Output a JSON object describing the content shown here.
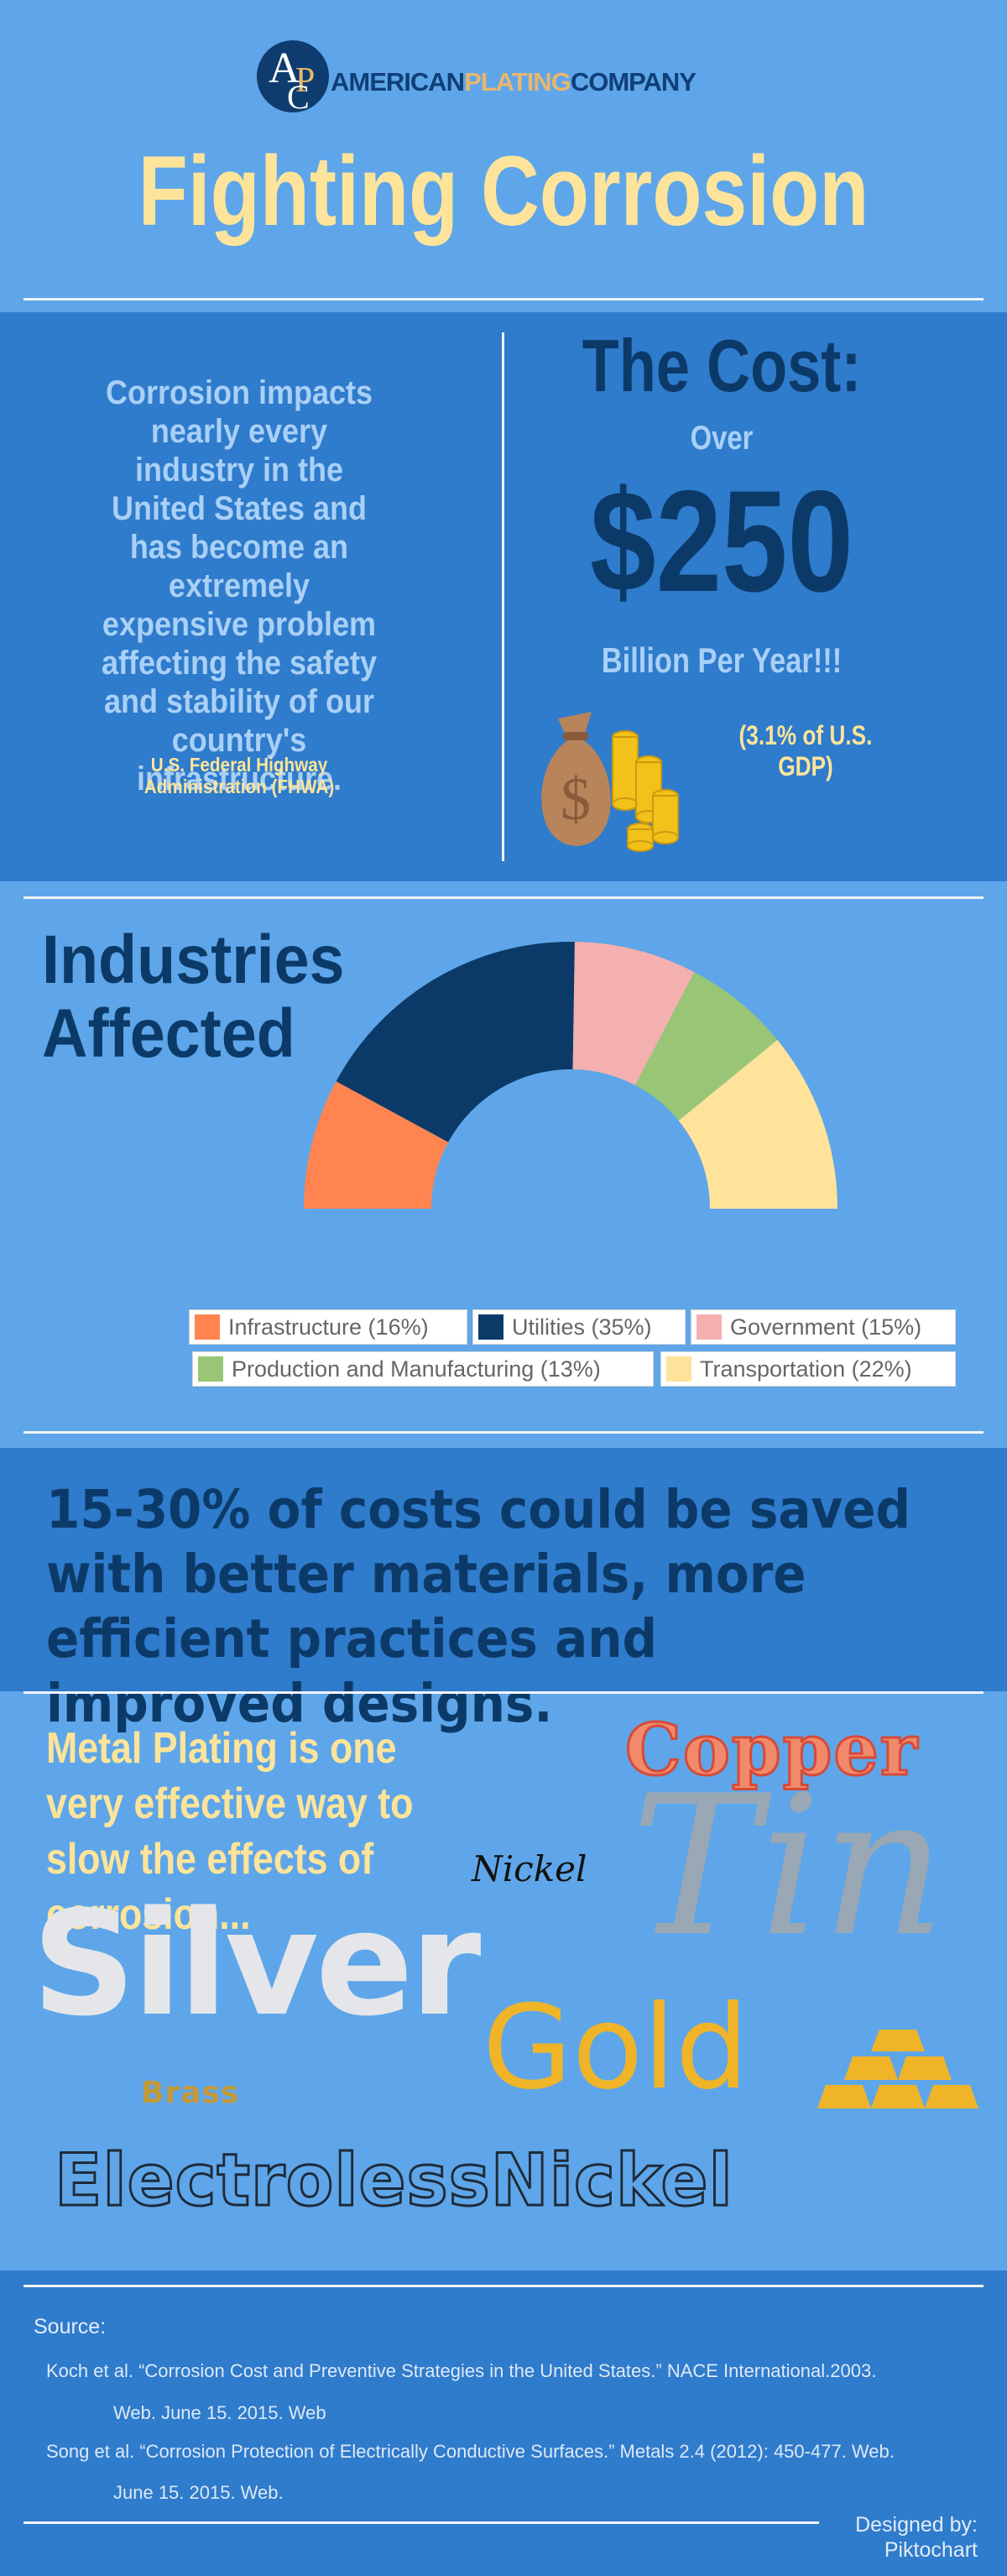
{
  "header": {
    "logo_letters": "AC",
    "logo_word1": "AMERICAN",
    "logo_word2": "PLATING",
    "logo_word3": "COMPANY",
    "title": "Fighting Corrosion"
  },
  "cost": {
    "quote": "Corrosion impacts nearly every industry in the United States and has become an extremely expensive problem affecting the safety and stability of our country's infrastructure.",
    "quote_source": "U.S. Federal Highway Administration (FHWA)",
    "heading": "The Cost:",
    "over": "Over",
    "amount": "$250",
    "per_year": "Billion Per Year!!!",
    "gdp_note": "(3.1% of U.S. GDP)"
  },
  "industries": {
    "heading_line1": "Industries",
    "heading_line2": "Affected"
  },
  "chart_data": {
    "type": "pie",
    "style": "half-donut",
    "legend_position": "bottom",
    "series": [
      {
        "label": "Infrastructure (16%)",
        "value": 16,
        "color": "#ff8450"
      },
      {
        "label": "Utilities (35%)",
        "value": 35,
        "color": "#0c3a68"
      },
      {
        "label": "Government (15%)",
        "value": 15,
        "color": "#f4b0ae"
      },
      {
        "label": "Production and Manufacturing (13%)",
        "value": 13,
        "color": "#98c676"
      },
      {
        "label": "Transportation (22%)",
        "value": 22,
        "color": "#ffe39a"
      }
    ]
  },
  "savings": {
    "text": "15-30% of costs could be saved with better materials, more efficient practices and improved designs."
  },
  "plating": {
    "intro": "Metal Plating is one very effective way to slow the effects of corrosion...",
    "copper": "Copper",
    "tin": "Tin",
    "nickel": "Nickel",
    "silver": "Silver",
    "gold": "Gold",
    "brass": "Brass",
    "electroless": "ElectrolessNickel"
  },
  "footer": {
    "source_label": "Source:",
    "ref1_line1": "Koch et al. “Corrosion Cost and Preventive Strategies in the United States.” NACE International.2003.",
    "ref1_line2": "Web. June 15. 2015. Web",
    "ref2_line1": "Song et al. “Corrosion Protection of Electrically Conductive Surfaces.” Metals 2.4 (2012): 450-477. Web.",
    "ref2_line2": "June 15. 2015. Web.",
    "designed_by": "Designed by:",
    "designer": "Piktochart"
  },
  "colors": {
    "background": "#5ea6e9",
    "band": "#2f7bcc",
    "navy": "#0c3a68",
    "yellow": "#fde49a"
  }
}
